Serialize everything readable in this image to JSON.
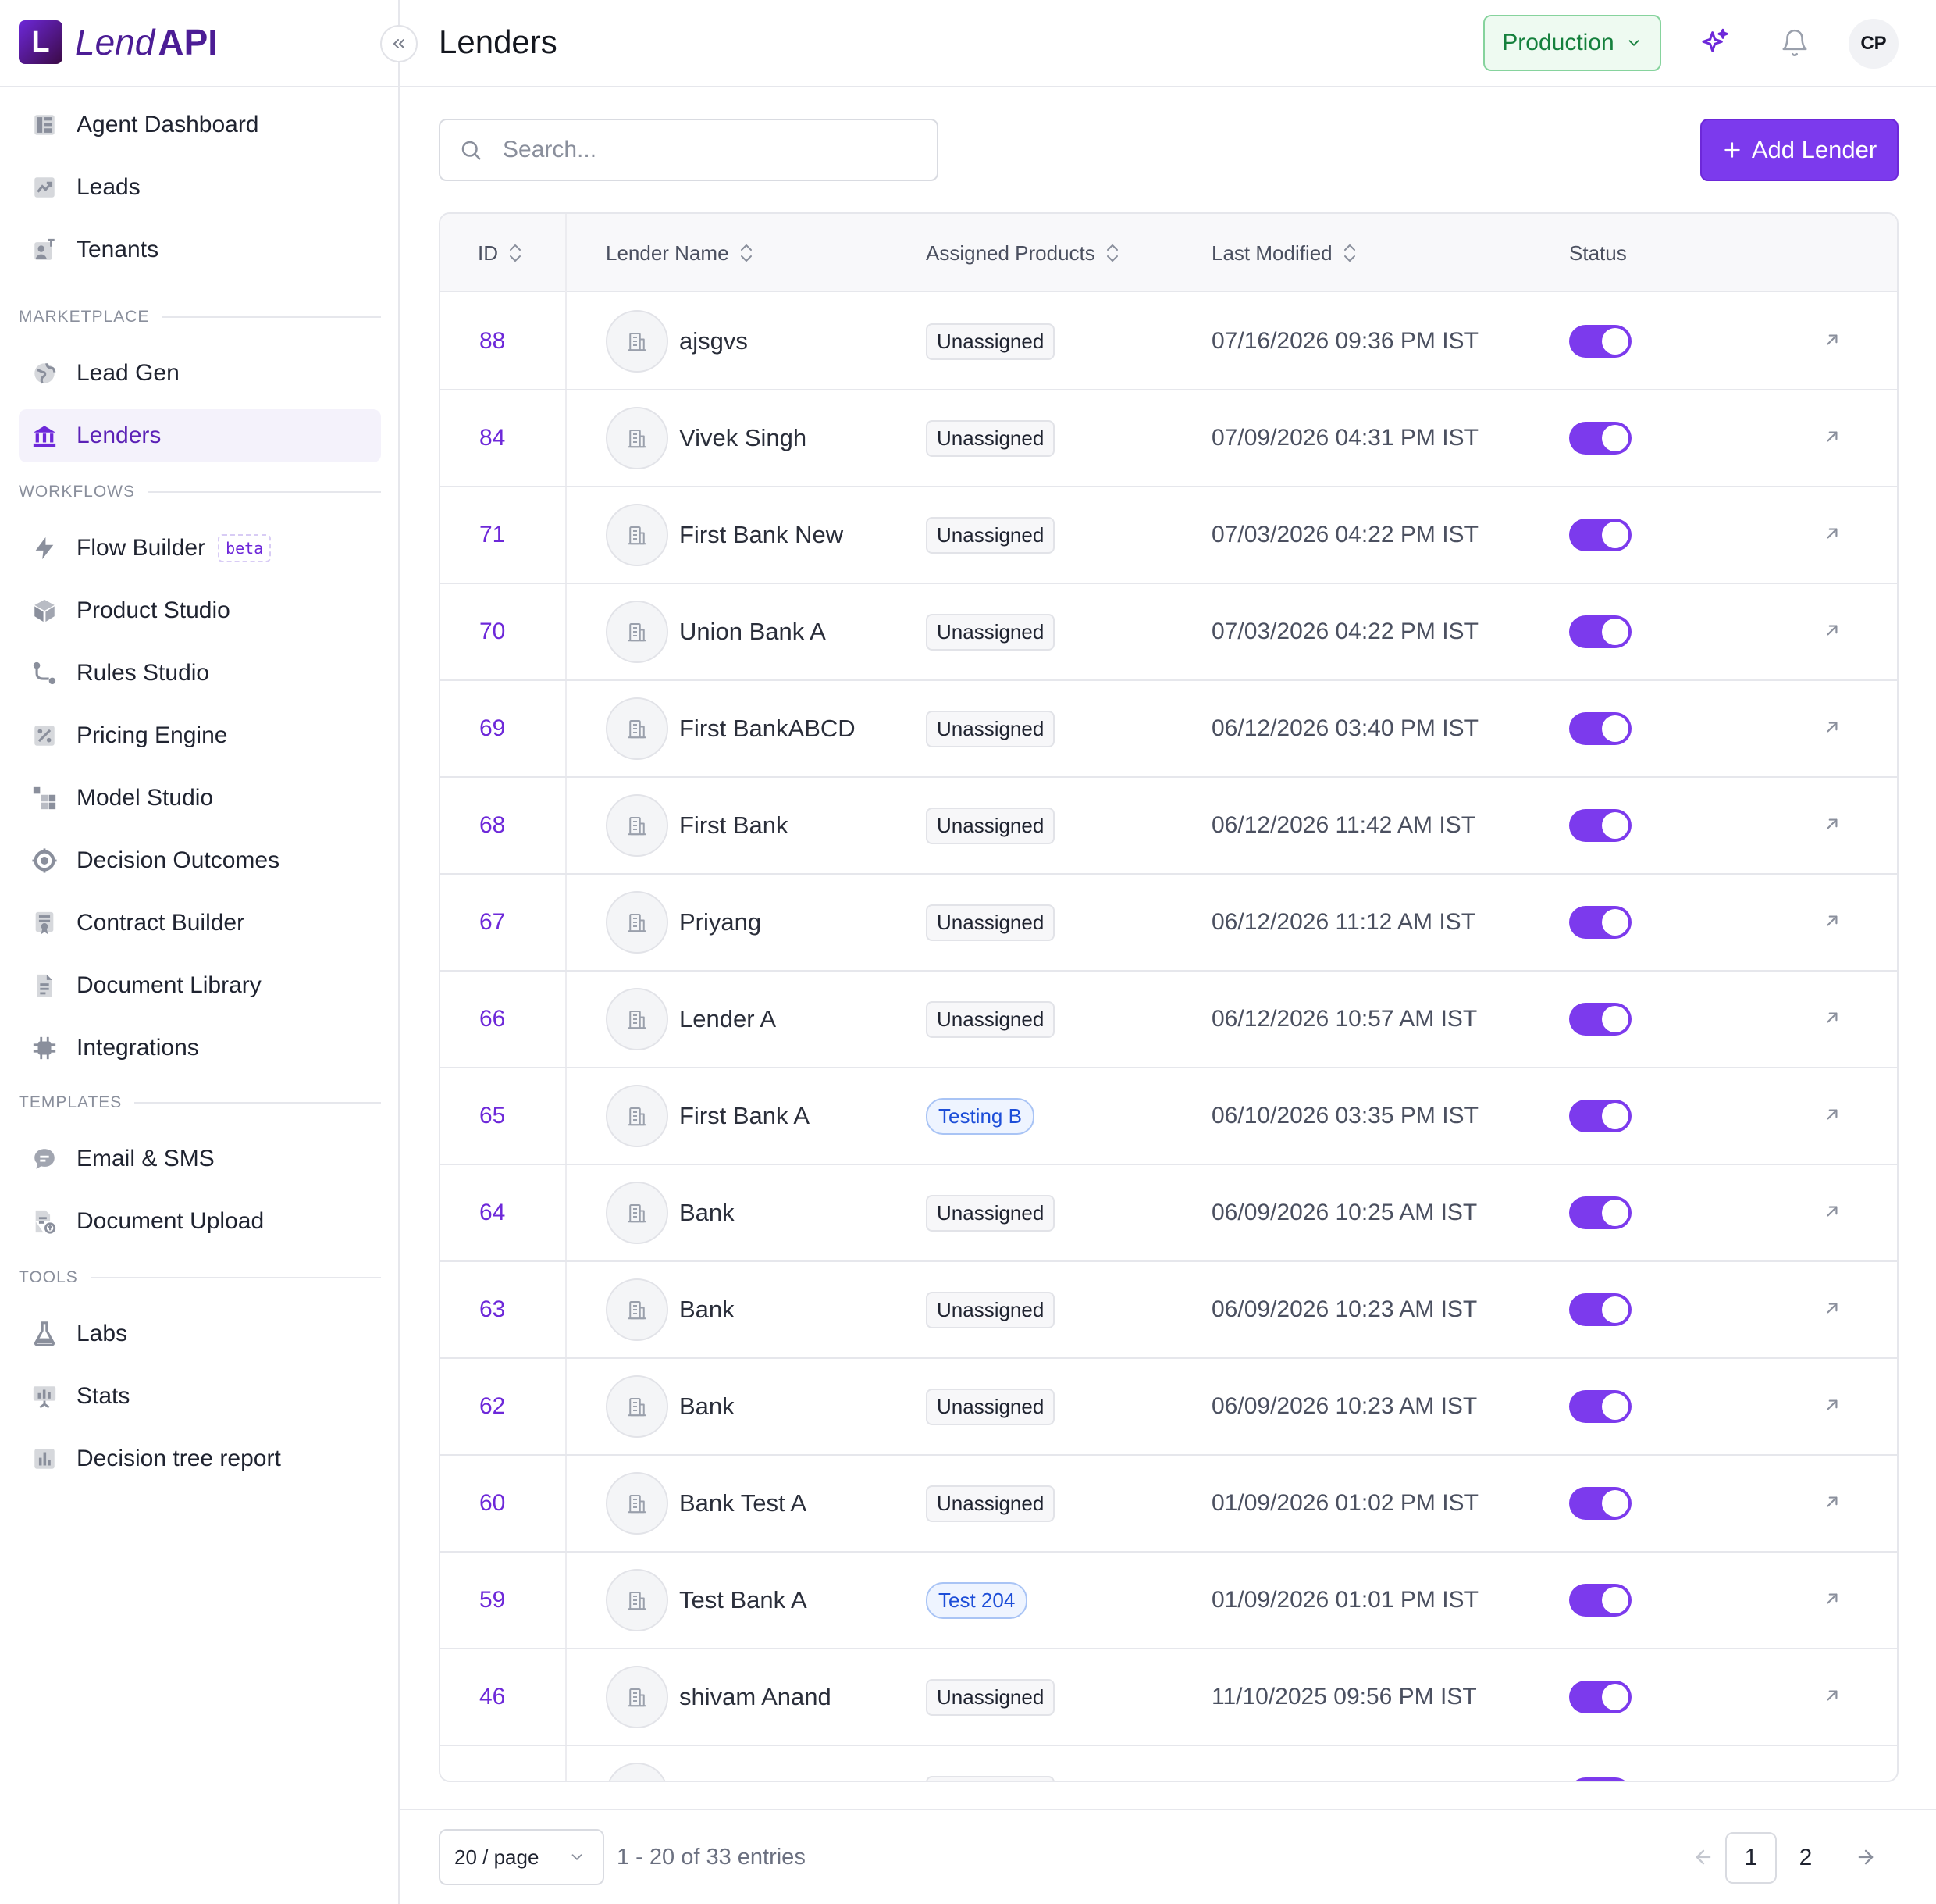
{
  "brand": {
    "mark": "L",
    "lend": "Lend",
    "api": "API"
  },
  "header": {
    "title": "Lenders",
    "environment": "Production",
    "avatar_initials": "CP"
  },
  "sidebar": {
    "main_items": [
      {
        "label": "Agent Dashboard",
        "icon": "dashboard-icon"
      },
      {
        "label": "Leads",
        "icon": "chart-trend-icon"
      },
      {
        "label": "Tenants",
        "icon": "tenant-icon"
      }
    ],
    "sections": [
      {
        "label": "MARKETPLACE",
        "items": [
          {
            "label": "Lead Gen",
            "icon": "globe-icon"
          },
          {
            "label": "Lenders",
            "icon": "bank-icon",
            "active": true
          }
        ]
      },
      {
        "label": "WORKFLOWS",
        "items": [
          {
            "label": "Flow Builder",
            "icon": "bolt-icon",
            "badge": "beta"
          },
          {
            "label": "Product Studio",
            "icon": "cube-icon"
          },
          {
            "label": "Rules Studio",
            "icon": "branch-icon"
          },
          {
            "label": "Pricing Engine",
            "icon": "percent-icon"
          },
          {
            "label": "Model Studio",
            "icon": "blocks-icon"
          },
          {
            "label": "Decision Outcomes",
            "icon": "target-icon"
          },
          {
            "label": "Contract Builder",
            "icon": "contract-icon"
          },
          {
            "label": "Document Library",
            "icon": "document-icon"
          },
          {
            "label": "Integrations",
            "icon": "chip-icon"
          }
        ]
      },
      {
        "label": "TEMPLATES",
        "items": [
          {
            "label": "Email & SMS",
            "icon": "chat-icon"
          },
          {
            "label": "Document Upload",
            "icon": "upload-doc-icon"
          }
        ]
      },
      {
        "label": "TOOLS",
        "items": [
          {
            "label": "Labs",
            "icon": "flask-icon"
          },
          {
            "label": "Stats",
            "icon": "presentation-icon"
          },
          {
            "label": "Decision tree report",
            "icon": "bar-report-icon"
          }
        ]
      }
    ]
  },
  "toolbar": {
    "search_placeholder": "Search...",
    "add_label": "Add Lender"
  },
  "table": {
    "columns": {
      "id": "ID",
      "name": "Lender Name",
      "products": "Assigned Products",
      "modified": "Last Modified",
      "status": "Status"
    },
    "rows": [
      {
        "id": "88",
        "name": "ajsgvs",
        "product": "Unassigned",
        "product_type": "default",
        "modified": "07/16/2026 09:36 PM IST",
        "active": true
      },
      {
        "id": "84",
        "name": "Vivek Singh",
        "product": "Unassigned",
        "product_type": "default",
        "modified": "07/09/2026 04:31 PM IST",
        "active": true
      },
      {
        "id": "71",
        "name": "First Bank New",
        "product": "Unassigned",
        "product_type": "default",
        "modified": "07/03/2026 04:22 PM IST",
        "active": true
      },
      {
        "id": "70",
        "name": "Union Bank A",
        "product": "Unassigned",
        "product_type": "default",
        "modified": "07/03/2026 04:22 PM IST",
        "active": true
      },
      {
        "id": "69",
        "name": "First BankABCD",
        "product": "Unassigned",
        "product_type": "default",
        "modified": "06/12/2026 03:40 PM IST",
        "active": true
      },
      {
        "id": "68",
        "name": "First Bank",
        "product": "Unassigned",
        "product_type": "default",
        "modified": "06/12/2026 11:42 AM IST",
        "active": true
      },
      {
        "id": "67",
        "name": "Priyang",
        "product": "Unassigned",
        "product_type": "default",
        "modified": "06/12/2026 11:12 AM IST",
        "active": true
      },
      {
        "id": "66",
        "name": "Lender A",
        "product": "Unassigned",
        "product_type": "default",
        "modified": "06/12/2026 10:57 AM IST",
        "active": true
      },
      {
        "id": "65",
        "name": "First Bank A",
        "product": "Testing B",
        "product_type": "blue",
        "modified": "06/10/2026 03:35 PM IST",
        "active": true
      },
      {
        "id": "64",
        "name": "Bank",
        "product": "Unassigned",
        "product_type": "default",
        "modified": "06/09/2026 10:25 AM IST",
        "active": true
      },
      {
        "id": "63",
        "name": "Bank",
        "product": "Unassigned",
        "product_type": "default",
        "modified": "06/09/2026 10:23 AM IST",
        "active": true
      },
      {
        "id": "62",
        "name": "Bank",
        "product": "Unassigned",
        "product_type": "default",
        "modified": "06/09/2026 10:23 AM IST",
        "active": true
      },
      {
        "id": "60",
        "name": "Bank Test A",
        "product": "Unassigned",
        "product_type": "default",
        "modified": "01/09/2026 01:02 PM IST",
        "active": true
      },
      {
        "id": "59",
        "name": "Test Bank A",
        "product": "Test 204",
        "product_type": "blue",
        "modified": "01/09/2026 01:01 PM IST",
        "active": true
      },
      {
        "id": "46",
        "name": "shivam Anand",
        "product": "Unassigned",
        "product_type": "default",
        "modified": "11/10/2025 09:56 PM IST",
        "active": true
      },
      {
        "id": "",
        "name": "",
        "product": "Unassigned",
        "product_type": "default",
        "modified": "",
        "active": true
      }
    ]
  },
  "footer": {
    "per_page": "20 / page",
    "entries": "1 - 20 of 33 entries",
    "pages": [
      "1",
      "2"
    ],
    "current_page": "1"
  },
  "colors": {
    "accent": "#7c3aed",
    "production_green": "#15803d",
    "badge_blue": "#1d4ed8"
  }
}
